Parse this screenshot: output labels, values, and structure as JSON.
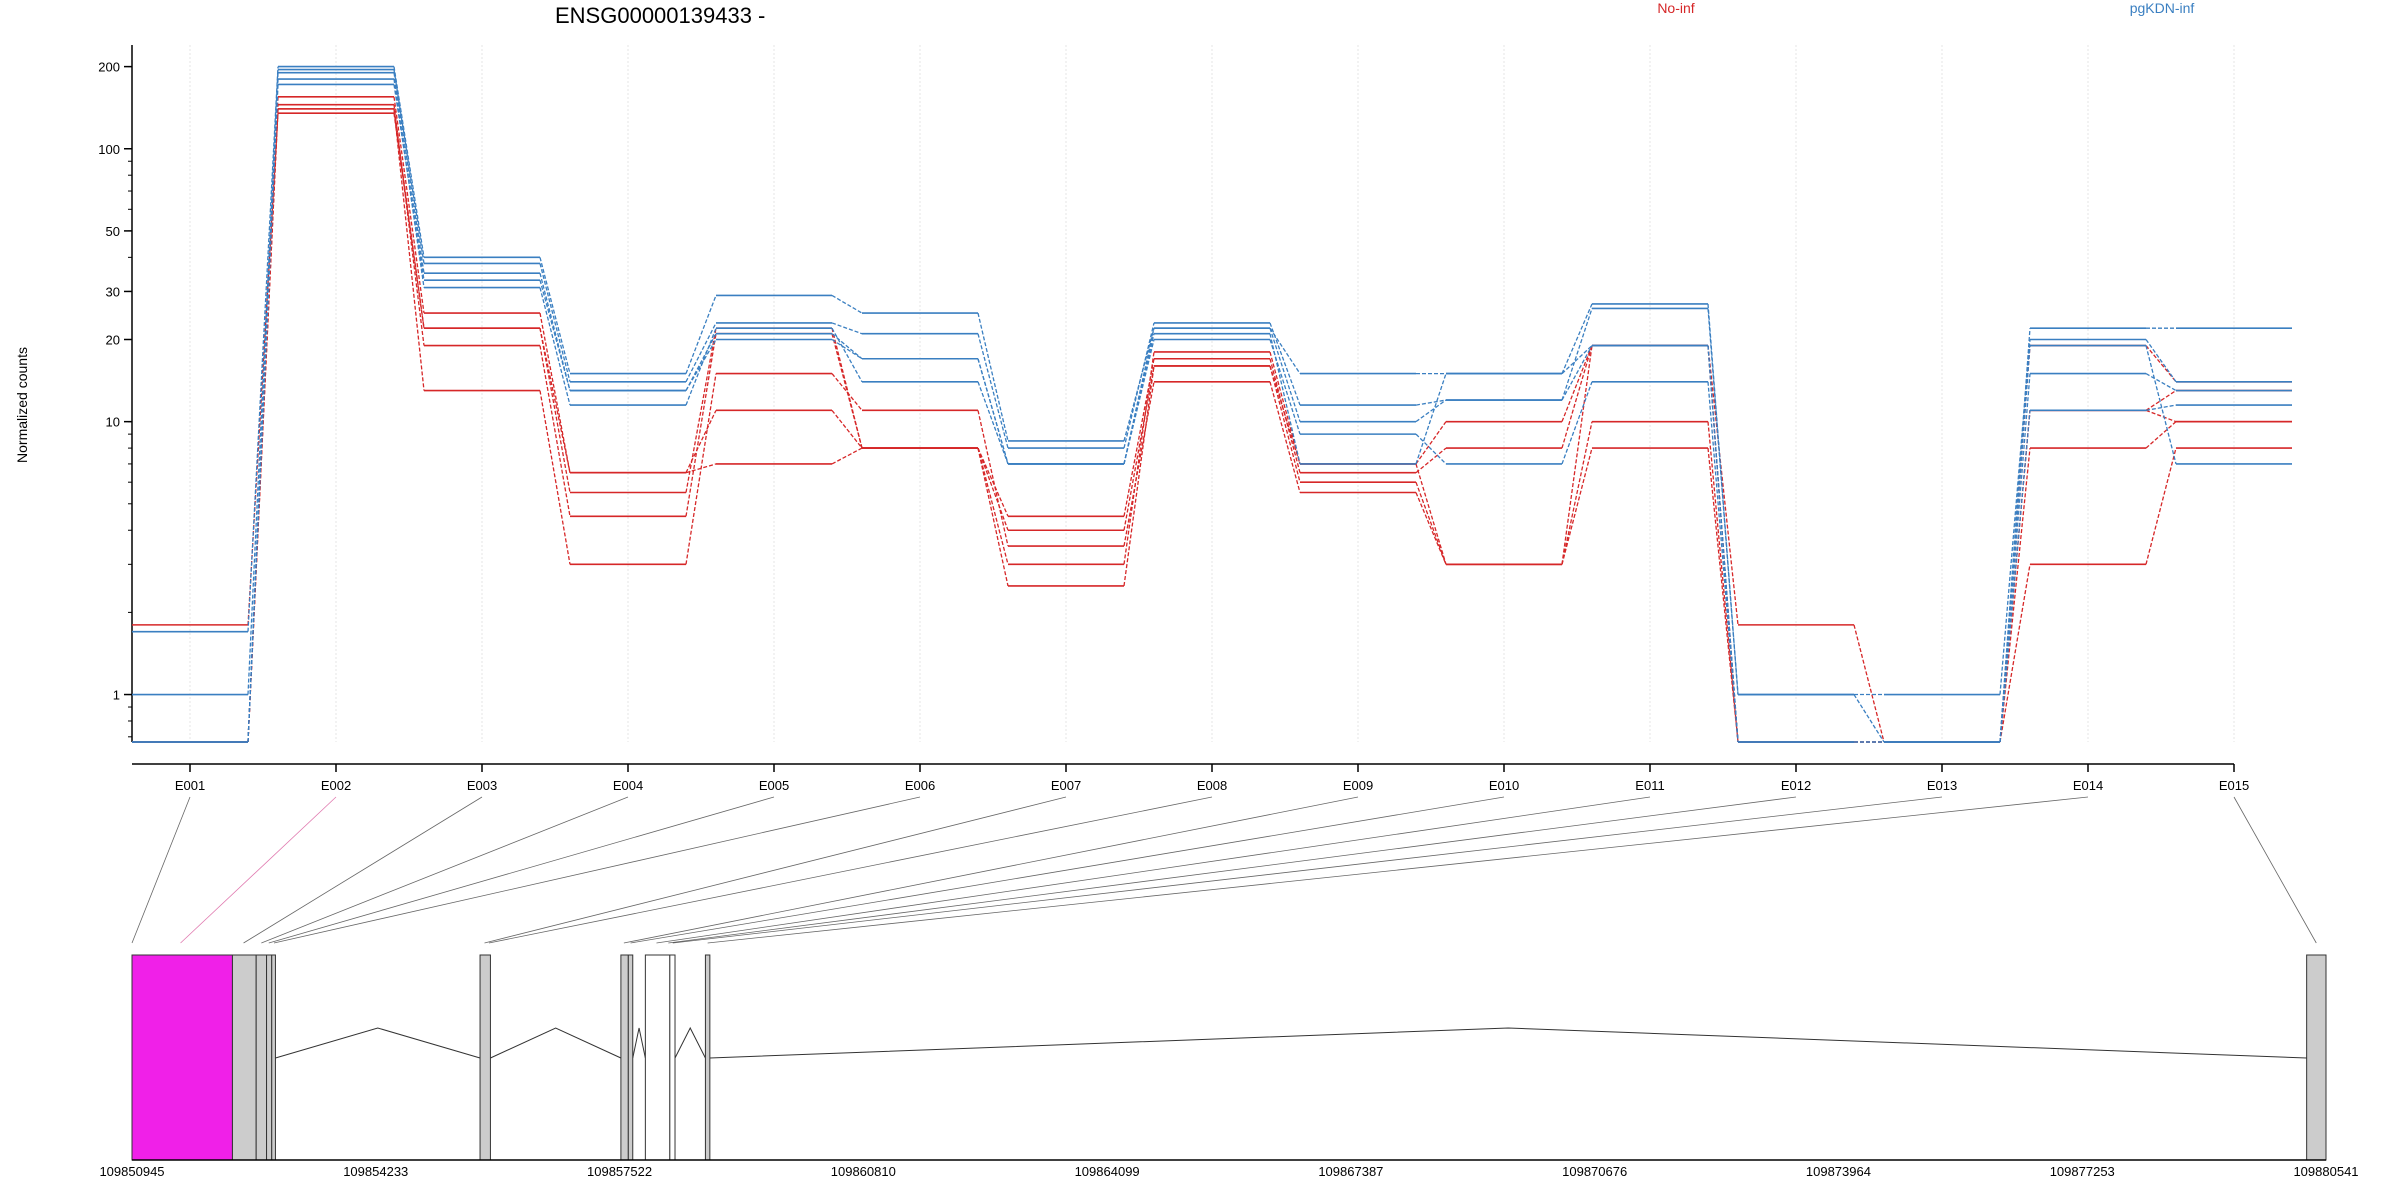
{
  "chart_data": {
    "type": "line",
    "title": "ENSG00000139433 -",
    "ylabel": "Normalized counts",
    "yscale": "log",
    "ylim": [
      0.67,
      240
    ],
    "yticks": [
      1,
      10,
      20,
      30,
      50,
      100,
      200
    ],
    "categories": [
      "E001",
      "E002",
      "E003",
      "E004",
      "E005",
      "E006",
      "E007",
      "E008",
      "E009",
      "E010",
      "E011",
      "E012",
      "E013",
      "E014",
      "E015"
    ],
    "legend": [
      {
        "label": "No-inf",
        "color": "#d62728"
      },
      {
        "label": "pgKDN-inf",
        "color": "#3a7fc1"
      }
    ],
    "series": [
      {
        "group": "No-inf",
        "color": "#d62728",
        "values": [
          1.8,
          135,
          22,
          5.5,
          22,
          8,
          4.5,
          17,
          6.5,
          8,
          19,
          1.8,
          0.67,
          19,
          14
        ]
      },
      {
        "group": "No-inf",
        "color": "#d62728",
        "values": [
          0.67,
          145,
          19,
          4.5,
          21,
          8,
          4,
          16,
          6,
          3,
          19,
          0.67,
          0.67,
          11,
          13
        ]
      },
      {
        "group": "No-inf",
        "color": "#d62728",
        "values": [
          0.67,
          140,
          13,
          3,
          15,
          11,
          3.5,
          14,
          5.5,
          3,
          10,
          0.67,
          0.67,
          8,
          10
        ]
      },
      {
        "group": "No-inf",
        "color": "#d62728",
        "values": [
          0.67,
          155,
          25,
          6.5,
          11,
          8,
          3,
          18,
          7,
          3,
          8,
          0.67,
          0.67,
          3,
          8
        ]
      },
      {
        "group": "No-inf",
        "color": "#d62728",
        "values": [
          0.67,
          140,
          22,
          6.5,
          7,
          8,
          2.5,
          16,
          7,
          10,
          19,
          0.67,
          0.67,
          11,
          10
        ]
      },
      {
        "group": "pgKDN-inf",
        "color": "#3a7fc1",
        "values": [
          1.7,
          200,
          40,
          15,
          29,
          25,
          8.5,
          22,
          15,
          15,
          27,
          1,
          0.67,
          22,
          22
        ]
      },
      {
        "group": "pgKDN-inf",
        "color": "#3a7fc1",
        "values": [
          1,
          195,
          38,
          14,
          23,
          21,
          8,
          23,
          11.5,
          12,
          26,
          1,
          1,
          20,
          14
        ]
      },
      {
        "group": "pgKDN-inf",
        "color": "#3a7fc1",
        "values": [
          0.67,
          190,
          35,
          13,
          20,
          17,
          7,
          22,
          10,
          12,
          19,
          0.67,
          0.67,
          15,
          13
        ]
      },
      {
        "group": "pgKDN-inf",
        "color": "#3a7fc1",
        "values": [
          0.67,
          180,
          31,
          11.5,
          22,
          14,
          7,
          20,
          9,
          7,
          14,
          0.67,
          0.67,
          11,
          11.5
        ]
      },
      {
        "group": "pgKDN-inf",
        "color": "#3a7fc1",
        "values": [
          0.67,
          172,
          33,
          13,
          21,
          17,
          7,
          21,
          7,
          15,
          19,
          0.67,
          0.67,
          19,
          7
        ]
      }
    ],
    "gene_model": {
      "coordinate_ticks": [
        "109850945",
        "109854233",
        "109857522",
        "109860810",
        "109864099",
        "109867387",
        "109870676",
        "109873964",
        "109877253",
        "109880541"
      ],
      "range": [
        109850945,
        109880541
      ],
      "exons": [
        {
          "start": 109850945,
          "end": 109852300,
          "color": "#f020e8"
        },
        {
          "start": 109852300,
          "end": 109852620,
          "color": "#cccccc"
        },
        {
          "start": 109852620,
          "end": 109852760,
          "color": "#cccccc"
        },
        {
          "start": 109852760,
          "end": 109852830,
          "color": "#cccccc"
        },
        {
          "start": 109852830,
          "end": 109852880,
          "color": "#cccccc"
        },
        {
          "start": 109855640,
          "end": 109855780,
          "color": "#cccccc"
        },
        {
          "start": 109857540,
          "end": 109857640,
          "color": "#cccccc"
        },
        {
          "start": 109857640,
          "end": 109857700,
          "color": "#cccccc"
        },
        {
          "start": 109857870,
          "end": 109858200,
          "color": "#ffffff"
        },
        {
          "start": 109858200,
          "end": 109858270,
          "color": "#ffffff"
        },
        {
          "start": 109858680,
          "end": 109858740,
          "color": "#cccccc"
        },
        {
          "start": 109880280,
          "end": 109880541,
          "color": "#cccccc"
        }
      ],
      "exon_links": [
        {
          "exon": "E001",
          "gene_pos": 109850945,
          "color": "#000000"
        },
        {
          "exon": "E002",
          "gene_pos": 109851600,
          "color": "#cc1f7a"
        },
        {
          "exon": "E003",
          "gene_pos": 109852450,
          "color": "#000000"
        },
        {
          "exon": "E004",
          "gene_pos": 109852690,
          "color": "#000000"
        },
        {
          "exon": "E005",
          "gene_pos": 109852790,
          "color": "#000000"
        },
        {
          "exon": "E006",
          "gene_pos": 109852860,
          "color": "#000000"
        },
        {
          "exon": "E007",
          "gene_pos": 109855700,
          "color": "#000000"
        },
        {
          "exon": "E008",
          "gene_pos": 109855760,
          "color": "#000000"
        },
        {
          "exon": "E009",
          "gene_pos": 109857580,
          "color": "#000000"
        },
        {
          "exon": "E010",
          "gene_pos": 109857670,
          "color": "#000000"
        },
        {
          "exon": "E011",
          "gene_pos": 109858020,
          "color": "#000000"
        },
        {
          "exon": "E012",
          "gene_pos": 109858180,
          "color": "#000000"
        },
        {
          "exon": "E013",
          "gene_pos": 109858240,
          "color": "#000000"
        },
        {
          "exon": "E014",
          "gene_pos": 109858710,
          "color": "#000000"
        },
        {
          "exon": "E015",
          "gene_pos": 109880410,
          "color": "#000000"
        }
      ]
    }
  }
}
